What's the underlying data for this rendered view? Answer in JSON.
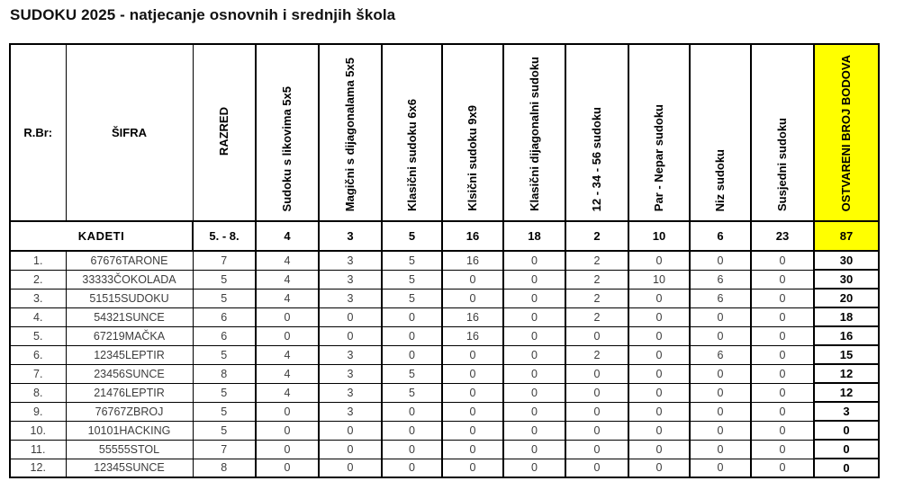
{
  "title": "SUDOKU 2025 - natjecanje osnovnih i srednjih škola",
  "colors": {
    "highlight": "#FFFF00",
    "border": "#000000",
    "data_text": "#3d3d3d"
  },
  "table": {
    "headers": {
      "rbr": "R.Br:",
      "sifra": "ŠIFRA",
      "razred": "RAZRED",
      "categories": [
        "Sudoku s likovima 5x5",
        "Magični s dijagonalama 5x5",
        "Klasični sudoku 6x6",
        "Klsični sudoku 9x9",
        "Klasični dijagonalni sudoku",
        "12 - 34 - 56 sudoku",
        "Par - Nepar sudoku",
        "Niz sudoku",
        "Susjedni sudoku"
      ],
      "total": "OSTVARENI BROJ BODOVA"
    },
    "group_row": {
      "label": "KADETI",
      "razred": "5. - 8.",
      "values": [
        4,
        3,
        5,
        16,
        18,
        2,
        10,
        6,
        23
      ],
      "total": 87
    },
    "rows": [
      {
        "rbr": "1.",
        "sifra": "67676TARONE",
        "razred": "7",
        "values": [
          4,
          3,
          5,
          16,
          0,
          2,
          0,
          0,
          0
        ],
        "total": 30
      },
      {
        "rbr": "2.",
        "sifra": "33333ČOKOLADA",
        "razred": "5",
        "values": [
          4,
          3,
          5,
          0,
          0,
          2,
          10,
          6,
          0
        ],
        "total": 30
      },
      {
        "rbr": "3.",
        "sifra": "51515SUDOKU",
        "razred": "5",
        "values": [
          4,
          3,
          5,
          0,
          0,
          2,
          0,
          6,
          0
        ],
        "total": 20
      },
      {
        "rbr": "4.",
        "sifra": "54321SUNCE",
        "razred": "6",
        "values": [
          0,
          0,
          0,
          16,
          0,
          2,
          0,
          0,
          0
        ],
        "total": 18
      },
      {
        "rbr": "5.",
        "sifra": "67219MAČKA",
        "razred": "6",
        "values": [
          0,
          0,
          0,
          16,
          0,
          0,
          0,
          0,
          0
        ],
        "total": 16
      },
      {
        "rbr": "6.",
        "sifra": "12345LEPTIR",
        "razred": "5",
        "values": [
          4,
          3,
          0,
          0,
          0,
          2,
          0,
          6,
          0
        ],
        "total": 15
      },
      {
        "rbr": "7.",
        "sifra": "23456SUNCE",
        "razred": "8",
        "values": [
          4,
          3,
          5,
          0,
          0,
          0,
          0,
          0,
          0
        ],
        "total": 12
      },
      {
        "rbr": "8.",
        "sifra": "21476LEPTIR",
        "razred": "5",
        "values": [
          4,
          3,
          5,
          0,
          0,
          0,
          0,
          0,
          0
        ],
        "total": 12
      },
      {
        "rbr": "9.",
        "sifra": "76767ZBROJ",
        "razred": "5",
        "values": [
          0,
          3,
          0,
          0,
          0,
          0,
          0,
          0,
          0
        ],
        "total": 3
      },
      {
        "rbr": "10.",
        "sifra": "10101HACKING",
        "razred": "5",
        "values": [
          0,
          0,
          0,
          0,
          0,
          0,
          0,
          0,
          0
        ],
        "total": 0
      },
      {
        "rbr": "11.",
        "sifra": "55555STOL",
        "razred": "7",
        "values": [
          0,
          0,
          0,
          0,
          0,
          0,
          0,
          0,
          0
        ],
        "total": 0
      },
      {
        "rbr": "12.",
        "sifra": "12345SUNCE",
        "razred": "8",
        "values": [
          0,
          0,
          0,
          0,
          0,
          0,
          0,
          0,
          0
        ],
        "total": 0
      }
    ]
  }
}
